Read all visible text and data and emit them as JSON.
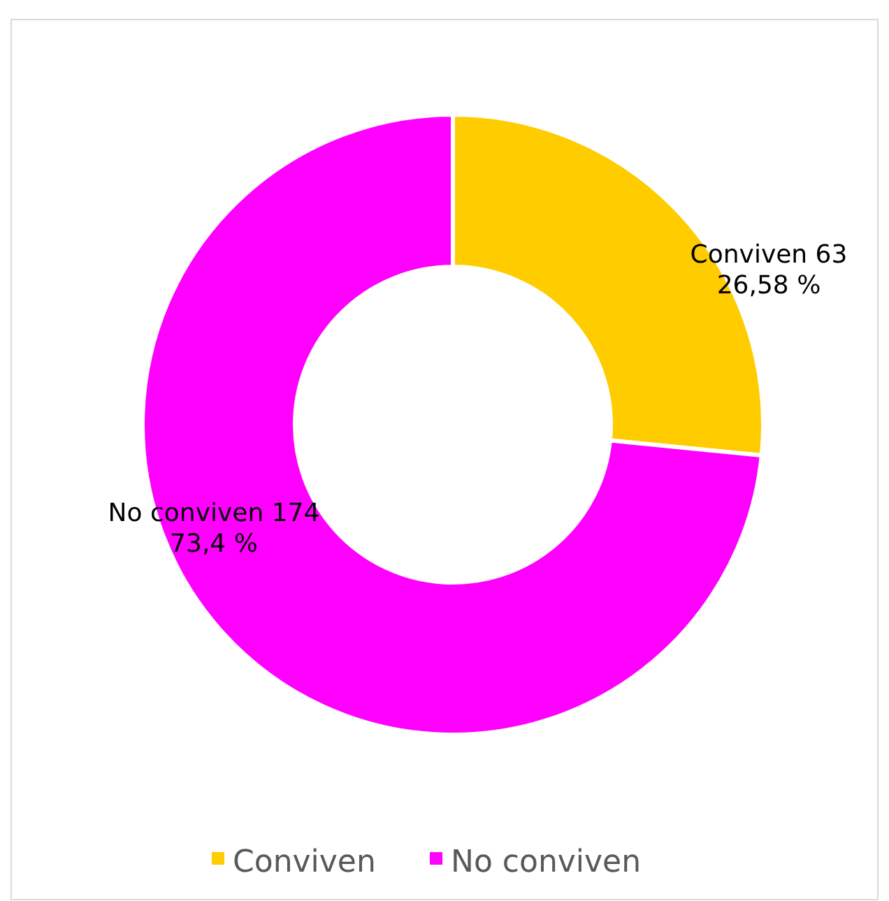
{
  "chart_data": {
    "type": "donut",
    "categories": [
      "Conviven",
      "No conviven"
    ],
    "values": [
      63,
      174
    ],
    "colors": [
      "#ffcc00",
      "#ff00ff"
    ],
    "value_labels": [
      "63\n26,58 %",
      "174\n73,4 %"
    ],
    "legend": "bottom"
  }
}
